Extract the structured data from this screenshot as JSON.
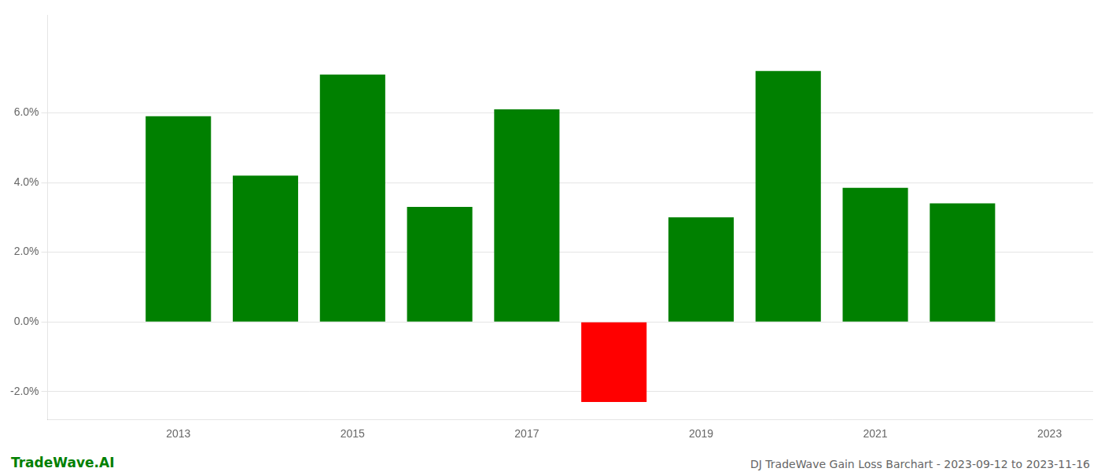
{
  "chart_data": {
    "type": "bar",
    "x": [
      2013,
      2014,
      2015,
      2016,
      2017,
      2018,
      2019,
      2020,
      2021,
      2022
    ],
    "values": [
      0.059,
      0.042,
      0.071,
      0.033,
      0.061,
      -0.023,
      0.03,
      0.072,
      0.0385,
      0.034
    ],
    "colors": [
      "#008000",
      "#008000",
      "#008000",
      "#008000",
      "#008000",
      "#ff0000",
      "#008000",
      "#008000",
      "#008000",
      "#008000"
    ],
    "xlim": [
      2011.5,
      2023.5
    ],
    "xticks": [
      2013,
      2015,
      2017,
      2019,
      2021,
      2023
    ],
    "ylim": [
      -0.028,
      0.088
    ],
    "yticks": [
      {
        "value": -0.02,
        "label": "-2.0%"
      },
      {
        "value": 0.0,
        "label": "0.0%"
      },
      {
        "value": 0.02,
        "label": "2.0%"
      },
      {
        "value": 0.04,
        "label": "4.0%"
      },
      {
        "value": 0.06,
        "label": "6.0%"
      }
    ],
    "grid": true,
    "annotations": [
      {
        "text": "TradeWave.AI",
        "color": "#008000"
      },
      {
        "text": "DJ TradeWave Gain Loss Barchart - 2023-09-12 to 2023-11-16",
        "color": "#666666"
      }
    ]
  }
}
